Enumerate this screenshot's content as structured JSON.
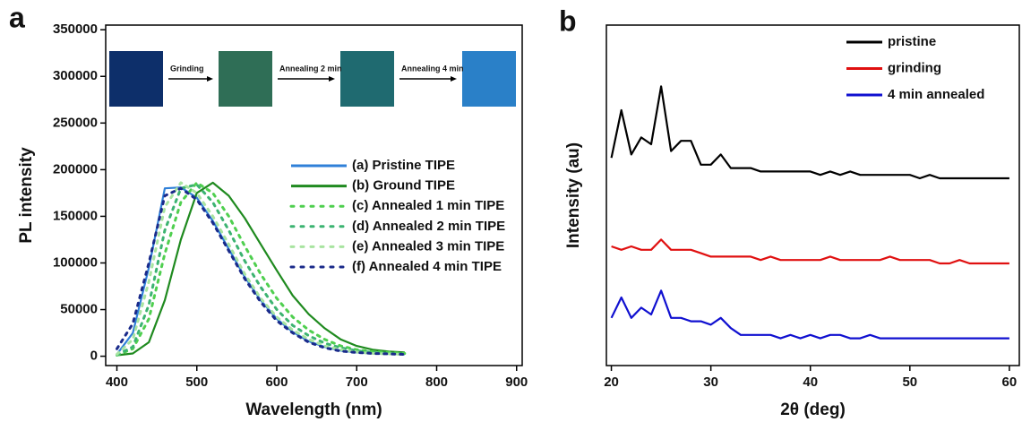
{
  "chart_data": [
    {
      "type": "line",
      "panel_label": "a",
      "x_label": "Wavelength (nm)",
      "y_label": "PL intensity",
      "xlim": [
        386,
        907
      ],
      "ylim": [
        -10000,
        355000
      ],
      "xticks": [
        400,
        500,
        600,
        700,
        800,
        900
      ],
      "yticks": [
        0,
        50000,
        100000,
        150000,
        200000,
        250000,
        300000,
        350000
      ],
      "legend": "center-right",
      "annotations": [
        "Grinding",
        "Annealing 2 min",
        "Annealing 4 min"
      ],
      "x": [
        400,
        420,
        440,
        460,
        480,
        500,
        520,
        540,
        560,
        580,
        600,
        620,
        640,
        660,
        680,
        700,
        720,
        740,
        760
      ],
      "series": [
        {
          "name": "(a) Pristine TIPE",
          "color": "#2f80d8",
          "dotted": false,
          "values": [
            2000,
            25000,
            95000,
            180000,
            181000,
            170000,
            145000,
            115000,
            85000,
            60000,
            40000,
            26000,
            16000,
            10000,
            6000,
            4000,
            3000,
            2500,
            2000
          ]
        },
        {
          "name": "(b) Ground TIPE",
          "color": "#1f8a1f",
          "dotted": false,
          "values": [
            1000,
            3000,
            15000,
            60000,
            125000,
            175000,
            186000,
            172000,
            148000,
            120000,
            92000,
            65000,
            45000,
            30000,
            18000,
            11000,
            7000,
            5000,
            4000
          ]
        },
        {
          "name": "(c) Annealed 1 min TIPE",
          "color": "#4fcf4f",
          "dotted": true,
          "values": [
            1000,
            8000,
            40000,
            110000,
            165000,
            186000,
            175000,
            150000,
            118000,
            88000,
            62000,
            42000,
            28000,
            18000,
            11000,
            7000,
            5000,
            4000,
            3000
          ]
        },
        {
          "name": "(d) Annealed 2 min TIPE",
          "color": "#3cb371",
          "dotted": true,
          "values": [
            1500,
            10000,
            55000,
            135000,
            180000,
            184000,
            165000,
            135000,
            102000,
            74000,
            50000,
            33000,
            22000,
            14000,
            9000,
            6000,
            4000,
            3000,
            2500
          ]
        },
        {
          "name": "(e) Annealed 3 min TIPE",
          "color": "#a8e4a0",
          "dotted": true,
          "values": [
            2000,
            18000,
            80000,
            160000,
            186000,
            175000,
            150000,
            120000,
            88000,
            62000,
            42000,
            28000,
            18000,
            11000,
            7000,
            4500,
            3000,
            2500,
            2000
          ]
        },
        {
          "name": " (f) Annealed 4 min TIPE",
          "color": "#1a2a8a",
          "dotted": true,
          "values": [
            8000,
            35000,
            100000,
            172000,
            180000,
            168000,
            143000,
            113000,
            83000,
            58000,
            38000,
            25000,
            15000,
            9000,
            5500,
            4000,
            3000,
            2500,
            2000
          ]
        }
      ]
    },
    {
      "type": "line",
      "panel_label": "b",
      "x_label": "2θ (deg)",
      "y_label": "Intensity (au)",
      "xlim": [
        19.5,
        61
      ],
      "ylim": [
        0,
        100
      ],
      "xticks": [
        20,
        30,
        40,
        50,
        60
      ],
      "legend": "upper-right",
      "x": [
        20,
        21,
        22,
        23,
        24,
        25,
        26,
        27,
        28,
        29,
        30,
        31,
        32,
        33,
        34,
        35,
        36,
        37,
        38,
        39,
        40,
        41,
        42,
        43,
        44,
        45,
        46,
        47,
        48,
        49,
        50,
        51,
        52,
        53,
        54,
        55,
        56,
        57,
        58,
        59,
        60
      ],
      "series": [
        {
          "name": "pristine",
          "color": "#000000",
          "dotted": false,
          "values": [
            61,
            75,
            62,
            67,
            65,
            82,
            63,
            66,
            66,
            59,
            59,
            62,
            58,
            58,
            58,
            57,
            57,
            57,
            57,
            57,
            57,
            56,
            57,
            56,
            57,
            56,
            56,
            56,
            56,
            56,
            56,
            55,
            56,
            55,
            55,
            55,
            55,
            55,
            55,
            55,
            55
          ]
        },
        {
          "name": "grinding",
          "color": "#e01010",
          "dotted": false,
          "values": [
            35,
            34,
            35,
            34,
            34,
            37,
            34,
            34,
            34,
            33,
            32,
            32,
            32,
            32,
            32,
            31,
            32,
            31,
            31,
            31,
            31,
            31,
            32,
            31,
            31,
            31,
            31,
            31,
            32,
            31,
            31,
            31,
            31,
            30,
            30,
            31,
            30,
            30,
            30,
            30,
            30
          ]
        },
        {
          "name": "4 min annealed",
          "color": "#1010d0",
          "dotted": false,
          "values": [
            14,
            20,
            14,
            17,
            15,
            22,
            14,
            14,
            13,
            13,
            12,
            14,
            11,
            9,
            9,
            9,
            9,
            8,
            9,
            8,
            9,
            8,
            9,
            9,
            8,
            8,
            9,
            8,
            8,
            8,
            8,
            8,
            8,
            8,
            8,
            8,
            8,
            8,
            8,
            8,
            8
          ]
        }
      ]
    }
  ]
}
